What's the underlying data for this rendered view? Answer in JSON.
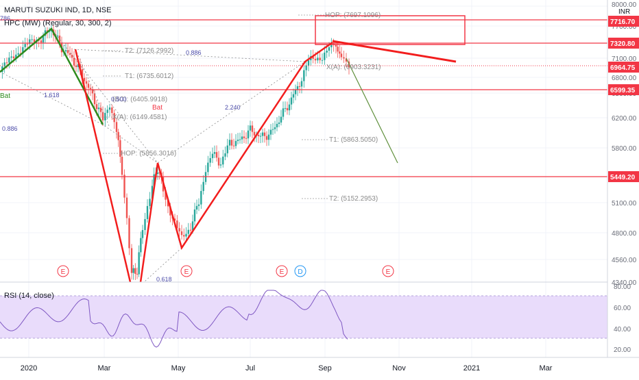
{
  "header": {
    "title": "MARUTI SUZUKI IND, 1D, NSE",
    "indicator": "HPC (MW) (Regular, 30, 300, 2)"
  },
  "price_axis": {
    "currency": "INR",
    "ticks": [
      "8000.00",
      "7700.00",
      "7400.00",
      "7100.00",
      "6800.00",
      "6500.00",
      "6200.00",
      "5800.00",
      "5450.00",
      "5100.00",
      "4800.00",
      "4560.00",
      "4340.00"
    ],
    "level_labels": [
      "7716.70",
      "7320.80",
      "6964.75",
      "6599.35",
      "5449.20"
    ]
  },
  "rsi": {
    "title": "RSI (14, close)",
    "ticks": [
      "80.00",
      "60.00",
      "40.00",
      "20.00"
    ],
    "color": "#7e57c2",
    "band_color": "#e9dcfb"
  },
  "time_axis": [
    "2020",
    "Mar",
    "May",
    "Jul",
    "Sep",
    "Nov",
    "2021",
    "Mar"
  ],
  "pattern_labels": {
    "hop_top": "HOP: (7697.1096)",
    "t2_top": "T2: (7126.2992)",
    "t1_top": "T1: (6735.6012)",
    "bc": "(BC): (6405.9918)",
    "xa_top": "X(A): (6149.4581)",
    "hop_mid": "HOP: (5856.3016)",
    "xa_right": "X(A): (6903.3231)",
    "t1_right": "T1: (5863.5050)",
    "t2_right": "T2: (5152.2953)",
    "bat": "Bat",
    "bat_left": "Bat",
    "fib_0886a": "0.886",
    "fib_0886b": "0.886",
    "fib_1618": "1.618",
    "fib_0500": "0.500",
    "fib_2240": "2.240",
    "fib_0618": "0.618",
    "fib_top_left": "786"
  },
  "events": [
    {
      "label": "E",
      "type": "earnings"
    },
    {
      "label": "E",
      "type": "earnings"
    },
    {
      "label": "E",
      "type": "earnings"
    },
    {
      "label": "D",
      "type": "dividend"
    },
    {
      "label": "E",
      "type": "earnings"
    }
  ],
  "colors": {
    "bull": "#26a69a",
    "bear": "#ef5350",
    "level": "#f23645",
    "pattern_red": "#f21d1d",
    "pattern_green": "#2e8b1e",
    "projection_green": "#5f8f3c",
    "dotted": "#8a8a8a"
  }
}
